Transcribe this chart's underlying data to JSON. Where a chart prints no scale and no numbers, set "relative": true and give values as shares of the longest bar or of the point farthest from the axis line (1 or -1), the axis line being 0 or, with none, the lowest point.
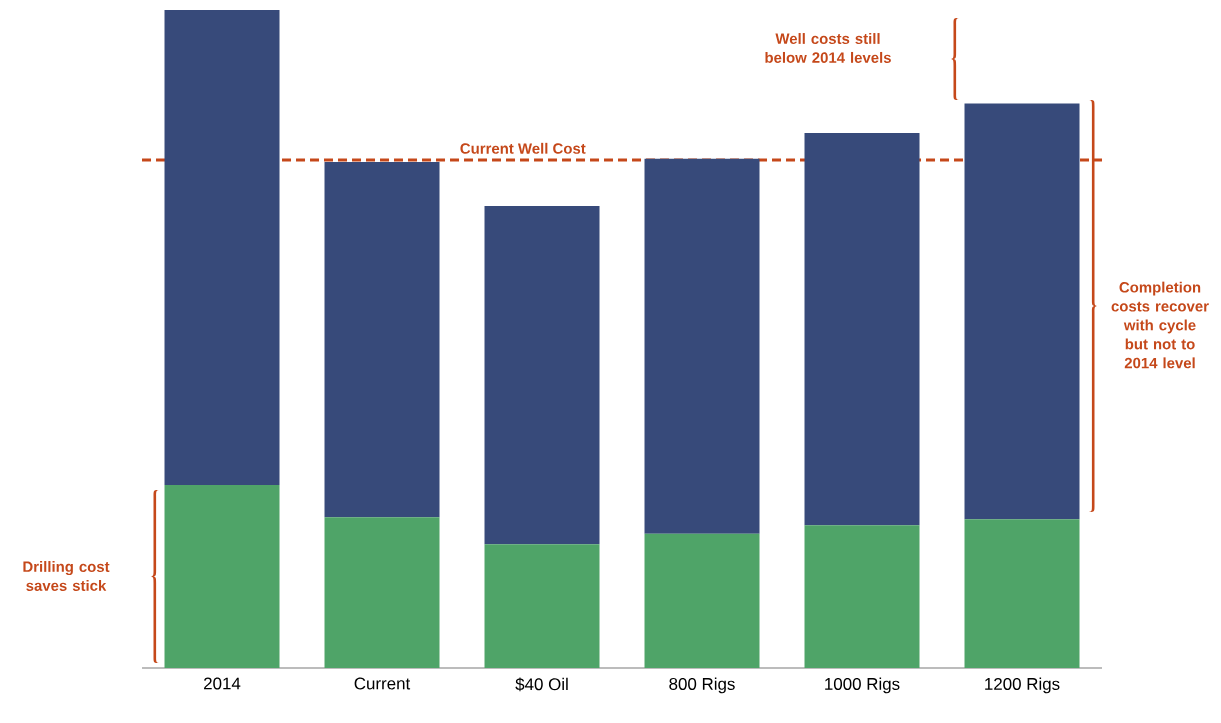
{
  "chart_data": {
    "type": "bar",
    "stacked": true,
    "relative": true,
    "categories": [
      "2014",
      "Current",
      "$40 Oil",
      "800 Rigs",
      "1000 Rigs",
      "1200 Rigs"
    ],
    "series": [
      {
        "color": "#4fa468",
        "values": [
          0.278,
          0.229,
          0.188,
          0.204,
          0.217,
          0.226
        ]
      },
      {
        "color": "#374a7a",
        "values": [
          0.722,
          0.54,
          0.514,
          0.57,
          0.596,
          0.632
        ]
      }
    ],
    "ref_lines": [
      {
        "axis": "y",
        "value": 0.772,
        "label": "Current Well Cost",
        "color": "#c5481a",
        "line_style": "dashed"
      }
    ],
    "annotations": [
      "Well costs still below 2014 levels",
      "Completion costs recover with cycle but not to 2014 level",
      "Drilling cost saves stick"
    ]
  }
}
